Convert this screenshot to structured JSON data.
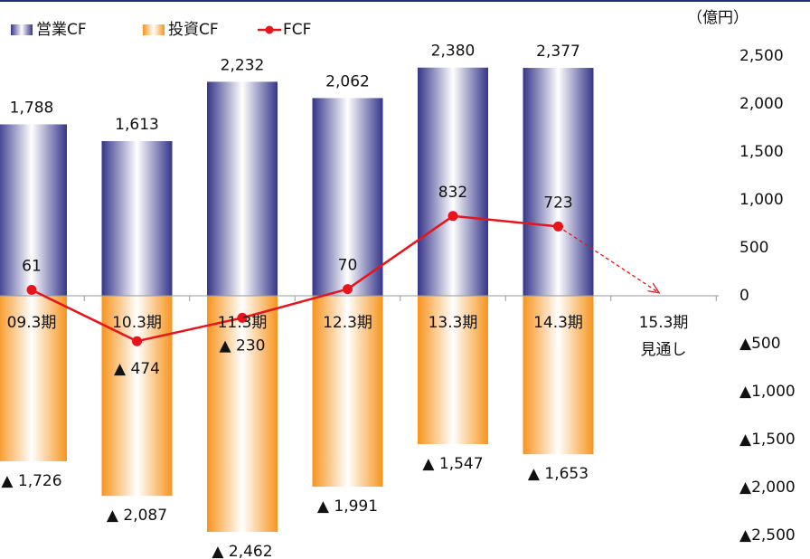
{
  "chart_data": {
    "type": "bar-line",
    "unit_label": "（億円）",
    "categories": [
      "09.3期",
      "10.3期",
      "11.3期",
      "12.3期",
      "13.3期",
      "14.3期",
      "15.3期\n見通し"
    ],
    "series": [
      {
        "name": "営業CF",
        "color": "#35358a",
        "kind": "bar",
        "values": [
          1788,
          1613,
          2232,
          2062,
          2380,
          2377,
          null
        ],
        "value_labels": [
          "1,788",
          "1,613",
          "2,232",
          "2,062",
          "2,380",
          "2,377",
          null
        ]
      },
      {
        "name": "投資CF",
        "color": "#f7941d",
        "kind": "bar",
        "values": [
          -1726,
          -2087,
          -2462,
          -1991,
          -1547,
          -1653,
          null
        ],
        "value_labels": [
          "▲ 1,726",
          "▲ 2,087",
          "▲ 2,462",
          "▲ 1,991",
          "▲ 1,547",
          "▲ 1,653",
          null
        ]
      },
      {
        "name": "FCF",
        "color": "#e8141b",
        "kind": "line",
        "values": [
          61,
          -474,
          -230,
          70,
          832,
          723,
          0
        ],
        "value_labels": [
          "61",
          "▲ 474",
          "▲ 230",
          "70",
          "832",
          "723",
          null
        ]
      }
    ],
    "ylim": [
      -2500,
      2500
    ],
    "yticks": [
      {
        "value": -2500,
        "label": "▲2,500"
      },
      {
        "value": -2000,
        "label": "▲2,000"
      },
      {
        "value": -1500,
        "label": "▲1,500"
      },
      {
        "value": -1000,
        "label": "▲1,000"
      },
      {
        "value": -500,
        "label": "▲500"
      },
      0,
      500,
      {
        "value": 1000,
        "label": "1,000"
      },
      {
        "value": 1500,
        "label": "1,500"
      },
      {
        "value": 2000,
        "label": "2,000"
      },
      {
        "value": 2500,
        "label": "2,500"
      }
    ]
  }
}
